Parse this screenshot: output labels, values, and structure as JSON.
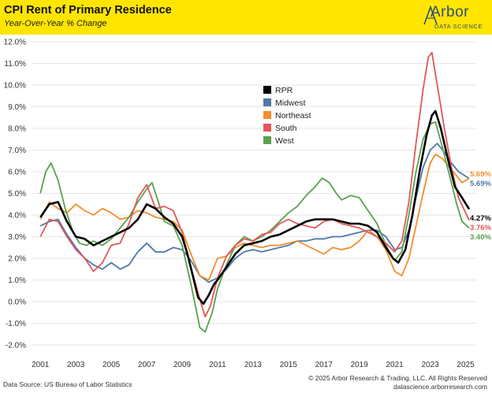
{
  "header": {
    "title": "CPI Rent of Primary Residence",
    "subtitle": "Year-Over-Year % Change"
  },
  "logo": {
    "name": "Arbor",
    "tagline": "DATA SCIENCE"
  },
  "footer": {
    "source": "Data Source: US Bureau of Labor Statistics",
    "copyright": "© 2025 Arbor Research & Trading, LLC. All Rights Reserved",
    "website": "datascience.arborresearch.com"
  },
  "colors": {
    "RPR": "#000000",
    "Midwest": "#4e79a7",
    "Northeast": "#f28e2b",
    "South": "#e15759",
    "West": "#59a14f",
    "header": "#ffe500"
  },
  "chart_data": {
    "type": "line",
    "title": "CPI Rent of Primary Residence",
    "subtitle": "Year-Over-Year % Change",
    "xlabel": "",
    "ylabel": "",
    "xlim": [
      2000.5,
      2025.6
    ],
    "ylim": [
      -2.0,
      12.0
    ],
    "yticks": [
      "12.0%",
      "11.0%",
      "10.0%",
      "9.0%",
      "8.0%",
      "7.0%",
      "6.0%",
      "5.0%",
      "4.0%",
      "3.0%",
      "2.0%",
      "1.0%",
      "0.0%",
      "-1.0%",
      "-2.0%"
    ],
    "ytick_values": [
      12,
      11,
      10,
      9,
      8,
      7,
      6,
      5,
      4,
      3,
      2,
      1,
      0,
      -1,
      -2
    ],
    "xticks": [
      "2001",
      "2003",
      "2005",
      "2007",
      "2009",
      "2011",
      "2013",
      "2015",
      "2017",
      "2019",
      "2021",
      "2023",
      "2025"
    ],
    "xtick_values": [
      2001,
      2003,
      2005,
      2007,
      2009,
      2011,
      2013,
      2015,
      2017,
      2019,
      2021,
      2023,
      2025
    ],
    "legend": [
      "RPR",
      "Midwest",
      "Northeast",
      "South",
      "West"
    ],
    "legend_position": "center",
    "series": [
      {
        "name": "RPR",
        "end_label": "4.27%",
        "points": [
          [
            2001,
            3.9
          ],
          [
            2001.5,
            4.5
          ],
          [
            2002,
            4.6
          ],
          [
            2002.5,
            3.7
          ],
          [
            2003,
            3.0
          ],
          [
            2003.5,
            2.9
          ],
          [
            2004,
            2.6
          ],
          [
            2004.5,
            2.8
          ],
          [
            2005,
            3.0
          ],
          [
            2005.5,
            3.2
          ],
          [
            2006,
            3.4
          ],
          [
            2006.5,
            3.8
          ],
          [
            2007,
            4.5
          ],
          [
            2007.5,
            4.3
          ],
          [
            2008,
            3.9
          ],
          [
            2008.5,
            3.6
          ],
          [
            2009,
            3.0
          ],
          [
            2009.3,
            2.2
          ],
          [
            2009.6,
            1.2
          ],
          [
            2009.9,
            0.2
          ],
          [
            2010.2,
            -0.1
          ],
          [
            2010.5,
            0.3
          ],
          [
            2010.8,
            0.8
          ],
          [
            2011,
            1.0
          ],
          [
            2011.5,
            1.6
          ],
          [
            2012,
            2.2
          ],
          [
            2012.5,
            2.6
          ],
          [
            2013,
            2.7
          ],
          [
            2013.5,
            2.8
          ],
          [
            2014,
            3.0
          ],
          [
            2014.5,
            3.1
          ],
          [
            2015,
            3.3
          ],
          [
            2015.5,
            3.5
          ],
          [
            2016,
            3.7
          ],
          [
            2016.5,
            3.8
          ],
          [
            2017,
            3.8
          ],
          [
            2017.5,
            3.8
          ],
          [
            2018,
            3.7
          ],
          [
            2018.5,
            3.6
          ],
          [
            2019,
            3.6
          ],
          [
            2019.5,
            3.5
          ],
          [
            2020,
            3.2
          ],
          [
            2020.5,
            2.5
          ],
          [
            2020.9,
            2.0
          ],
          [
            2021.2,
            1.8
          ],
          [
            2021.6,
            2.4
          ],
          [
            2022,
            4.0
          ],
          [
            2022.4,
            6.0
          ],
          [
            2022.8,
            7.7
          ],
          [
            2023.1,
            8.6
          ],
          [
            2023.3,
            8.8
          ],
          [
            2023.6,
            8.0
          ],
          [
            2024,
            6.6
          ],
          [
            2024.4,
            5.3
          ],
          [
            2024.8,
            4.8
          ],
          [
            2025.2,
            4.27
          ]
        ]
      },
      {
        "name": "Midwest",
        "end_label": "5.69%",
        "points": [
          [
            2001,
            3.5
          ],
          [
            2001.5,
            3.7
          ],
          [
            2002,
            3.8
          ],
          [
            2002.5,
            3.1
          ],
          [
            2003,
            2.5
          ],
          [
            2003.5,
            2.0
          ],
          [
            2004,
            1.7
          ],
          [
            2004.5,
            1.5
          ],
          [
            2005,
            1.8
          ],
          [
            2005.5,
            1.5
          ],
          [
            2006,
            1.7
          ],
          [
            2006.5,
            2.3
          ],
          [
            2007,
            2.7
          ],
          [
            2007.5,
            2.3
          ],
          [
            2008,
            2.3
          ],
          [
            2008.5,
            2.5
          ],
          [
            2009,
            2.4
          ],
          [
            2009.5,
            1.9
          ],
          [
            2010,
            1.2
          ],
          [
            2010.5,
            0.9
          ],
          [
            2011,
            1.1
          ],
          [
            2011.5,
            1.5
          ],
          [
            2012,
            2.0
          ],
          [
            2012.5,
            2.3
          ],
          [
            2013,
            2.4
          ],
          [
            2013.5,
            2.3
          ],
          [
            2014,
            2.4
          ],
          [
            2014.5,
            2.5
          ],
          [
            2015,
            2.6
          ],
          [
            2015.5,
            2.8
          ],
          [
            2016,
            2.8
          ],
          [
            2016.5,
            2.9
          ],
          [
            2017,
            2.9
          ],
          [
            2017.5,
            3.0
          ],
          [
            2018,
            3.0
          ],
          [
            2018.5,
            3.1
          ],
          [
            2019,
            3.2
          ],
          [
            2019.5,
            3.3
          ],
          [
            2020,
            3.3
          ],
          [
            2020.5,
            3.0
          ],
          [
            2021,
            2.4
          ],
          [
            2021.4,
            2.5
          ],
          [
            2021.8,
            3.3
          ],
          [
            2022.2,
            4.8
          ],
          [
            2022.6,
            6.2
          ],
          [
            2023,
            7.0
          ],
          [
            2023.4,
            7.3
          ],
          [
            2023.8,
            6.9
          ],
          [
            2024.2,
            6.4
          ],
          [
            2024.6,
            6.0
          ],
          [
            2025.2,
            5.69
          ]
        ]
      },
      {
        "name": "Northeast",
        "end_label": "5.69%",
        "points": [
          [
            2001,
            3.8
          ],
          [
            2001.5,
            4.6
          ],
          [
            2002,
            4.3
          ],
          [
            2002.5,
            4.1
          ],
          [
            2003,
            4.5
          ],
          [
            2003.5,
            4.2
          ],
          [
            2004,
            4.0
          ],
          [
            2004.5,
            4.3
          ],
          [
            2005,
            4.1
          ],
          [
            2005.5,
            3.8
          ],
          [
            2006,
            3.9
          ],
          [
            2006.5,
            4.2
          ],
          [
            2007,
            4.1
          ],
          [
            2007.5,
            3.9
          ],
          [
            2008,
            3.8
          ],
          [
            2008.5,
            3.7
          ],
          [
            2009,
            3.3
          ],
          [
            2009.5,
            2.2
          ],
          [
            2010,
            1.2
          ],
          [
            2010.5,
            1.0
          ],
          [
            2011,
            2.0
          ],
          [
            2011.5,
            2.1
          ],
          [
            2012,
            2.5
          ],
          [
            2012.5,
            2.7
          ],
          [
            2013,
            2.6
          ],
          [
            2013.5,
            2.5
          ],
          [
            2014,
            2.6
          ],
          [
            2014.5,
            2.6
          ],
          [
            2015,
            2.7
          ],
          [
            2015.5,
            2.8
          ],
          [
            2016,
            2.6
          ],
          [
            2016.5,
            2.4
          ],
          [
            2017,
            2.2
          ],
          [
            2017.5,
            2.5
          ],
          [
            2018,
            2.4
          ],
          [
            2018.5,
            2.5
          ],
          [
            2019,
            2.8
          ],
          [
            2019.5,
            3.3
          ],
          [
            2020,
            3.0
          ],
          [
            2020.5,
            2.4
          ],
          [
            2021,
            1.4
          ],
          [
            2021.4,
            1.2
          ],
          [
            2021.8,
            2.0
          ],
          [
            2022.2,
            3.5
          ],
          [
            2022.6,
            5.0
          ],
          [
            2023,
            6.4
          ],
          [
            2023.3,
            6.8
          ],
          [
            2023.7,
            6.6
          ],
          [
            2024.1,
            6.2
          ],
          [
            2024.5,
            5.8
          ],
          [
            2024.8,
            5.5
          ],
          [
            2025.2,
            5.69
          ]
        ]
      },
      {
        "name": "South",
        "end_label": "3.76%",
        "points": [
          [
            2001,
            3.0
          ],
          [
            2001.5,
            3.8
          ],
          [
            2002,
            3.7
          ],
          [
            2002.5,
            3.0
          ],
          [
            2003,
            2.4
          ],
          [
            2003.5,
            2.0
          ],
          [
            2004,
            1.4
          ],
          [
            2004.5,
            1.8
          ],
          [
            2005,
            2.6
          ],
          [
            2005.5,
            2.7
          ],
          [
            2006,
            3.6
          ],
          [
            2006.5,
            4.8
          ],
          [
            2007,
            5.4
          ],
          [
            2007.5,
            4.3
          ],
          [
            2008,
            4.4
          ],
          [
            2008.5,
            4.2
          ],
          [
            2009,
            3.2
          ],
          [
            2009.5,
            1.6
          ],
          [
            2010,
            0.1
          ],
          [
            2010.3,
            -0.7
          ],
          [
            2010.6,
            -0.2
          ],
          [
            2011,
            1.1
          ],
          [
            2011.5,
            2.1
          ],
          [
            2012,
            2.6
          ],
          [
            2012.5,
            2.9
          ],
          [
            2013,
            2.8
          ],
          [
            2013.5,
            3.1
          ],
          [
            2014,
            3.2
          ],
          [
            2014.5,
            3.6
          ],
          [
            2015,
            3.8
          ],
          [
            2015.5,
            3.6
          ],
          [
            2016,
            3.5
          ],
          [
            2016.5,
            3.4
          ],
          [
            2017,
            3.7
          ],
          [
            2017.5,
            3.8
          ],
          [
            2018,
            3.6
          ],
          [
            2018.5,
            3.5
          ],
          [
            2019,
            3.4
          ],
          [
            2019.5,
            3.2
          ],
          [
            2020,
            3.0
          ],
          [
            2020.5,
            2.7
          ],
          [
            2021,
            2.3
          ],
          [
            2021.4,
            2.8
          ],
          [
            2021.8,
            4.6
          ],
          [
            2022.2,
            7.3
          ],
          [
            2022.6,
            9.8
          ],
          [
            2022.9,
            11.3
          ],
          [
            2023.1,
            11.5
          ],
          [
            2023.4,
            10.0
          ],
          [
            2023.8,
            8.0
          ],
          [
            2024.2,
            6.2
          ],
          [
            2024.6,
            4.8
          ],
          [
            2025.2,
            3.76
          ]
        ]
      },
      {
        "name": "West",
        "end_label": "3.40%",
        "points": [
          [
            2001,
            5.0
          ],
          [
            2001.3,
            6.0
          ],
          [
            2001.6,
            6.4
          ],
          [
            2002,
            5.6
          ],
          [
            2002.4,
            4.3
          ],
          [
            2002.8,
            3.3
          ],
          [
            2003.2,
            2.7
          ],
          [
            2003.6,
            2.6
          ],
          [
            2004,
            2.8
          ],
          [
            2004.5,
            2.6
          ],
          [
            2005,
            2.9
          ],
          [
            2005.5,
            3.4
          ],
          [
            2006,
            3.9
          ],
          [
            2006.5,
            4.6
          ],
          [
            2007,
            5.2
          ],
          [
            2007.3,
            5.5
          ],
          [
            2007.7,
            4.5
          ],
          [
            2008,
            3.7
          ],
          [
            2008.5,
            3.5
          ],
          [
            2009,
            2.6
          ],
          [
            2009.5,
            0.8
          ],
          [
            2010,
            -1.2
          ],
          [
            2010.3,
            -1.4
          ],
          [
            2010.7,
            -0.5
          ],
          [
            2011,
            0.6
          ],
          [
            2011.5,
            1.7
          ],
          [
            2012,
            2.6
          ],
          [
            2012.5,
            3.0
          ],
          [
            2013,
            2.8
          ],
          [
            2013.5,
            3.0
          ],
          [
            2014,
            3.3
          ],
          [
            2014.5,
            3.7
          ],
          [
            2015,
            4.1
          ],
          [
            2015.5,
            4.4
          ],
          [
            2016,
            4.9
          ],
          [
            2016.5,
            5.3
          ],
          [
            2016.9,
            5.7
          ],
          [
            2017.3,
            5.5
          ],
          [
            2017.7,
            5.0
          ],
          [
            2018,
            4.7
          ],
          [
            2018.5,
            4.9
          ],
          [
            2019,
            4.8
          ],
          [
            2019.5,
            4.2
          ],
          [
            2020,
            3.6
          ],
          [
            2020.5,
            2.6
          ],
          [
            2021,
            1.9
          ],
          [
            2021.4,
            2.3
          ],
          [
            2021.8,
            4.0
          ],
          [
            2022.2,
            6.0
          ],
          [
            2022.6,
            7.5
          ],
          [
            2023,
            8.2
          ],
          [
            2023.3,
            8.3
          ],
          [
            2023.7,
            7.1
          ],
          [
            2024.1,
            5.8
          ],
          [
            2024.5,
            4.5
          ],
          [
            2024.8,
            3.7
          ],
          [
            2025.2,
            3.4
          ]
        ]
      }
    ]
  }
}
